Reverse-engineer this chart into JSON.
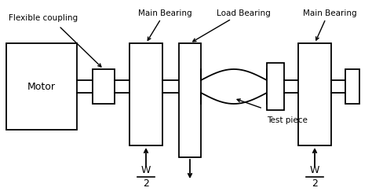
{
  "bg_color": "#ffffff",
  "line_color": "#000000",
  "labels": {
    "flexible_coupling": "Flexible coupling",
    "main_bearing_left": "Main Bearing",
    "load_bearing": "Load Bearing",
    "main_bearing_right": "Main Bearing",
    "motor": "Motor",
    "test_piece": "Test piece"
  },
  "figsize": [
    4.74,
    2.48
  ],
  "dpi": 100
}
